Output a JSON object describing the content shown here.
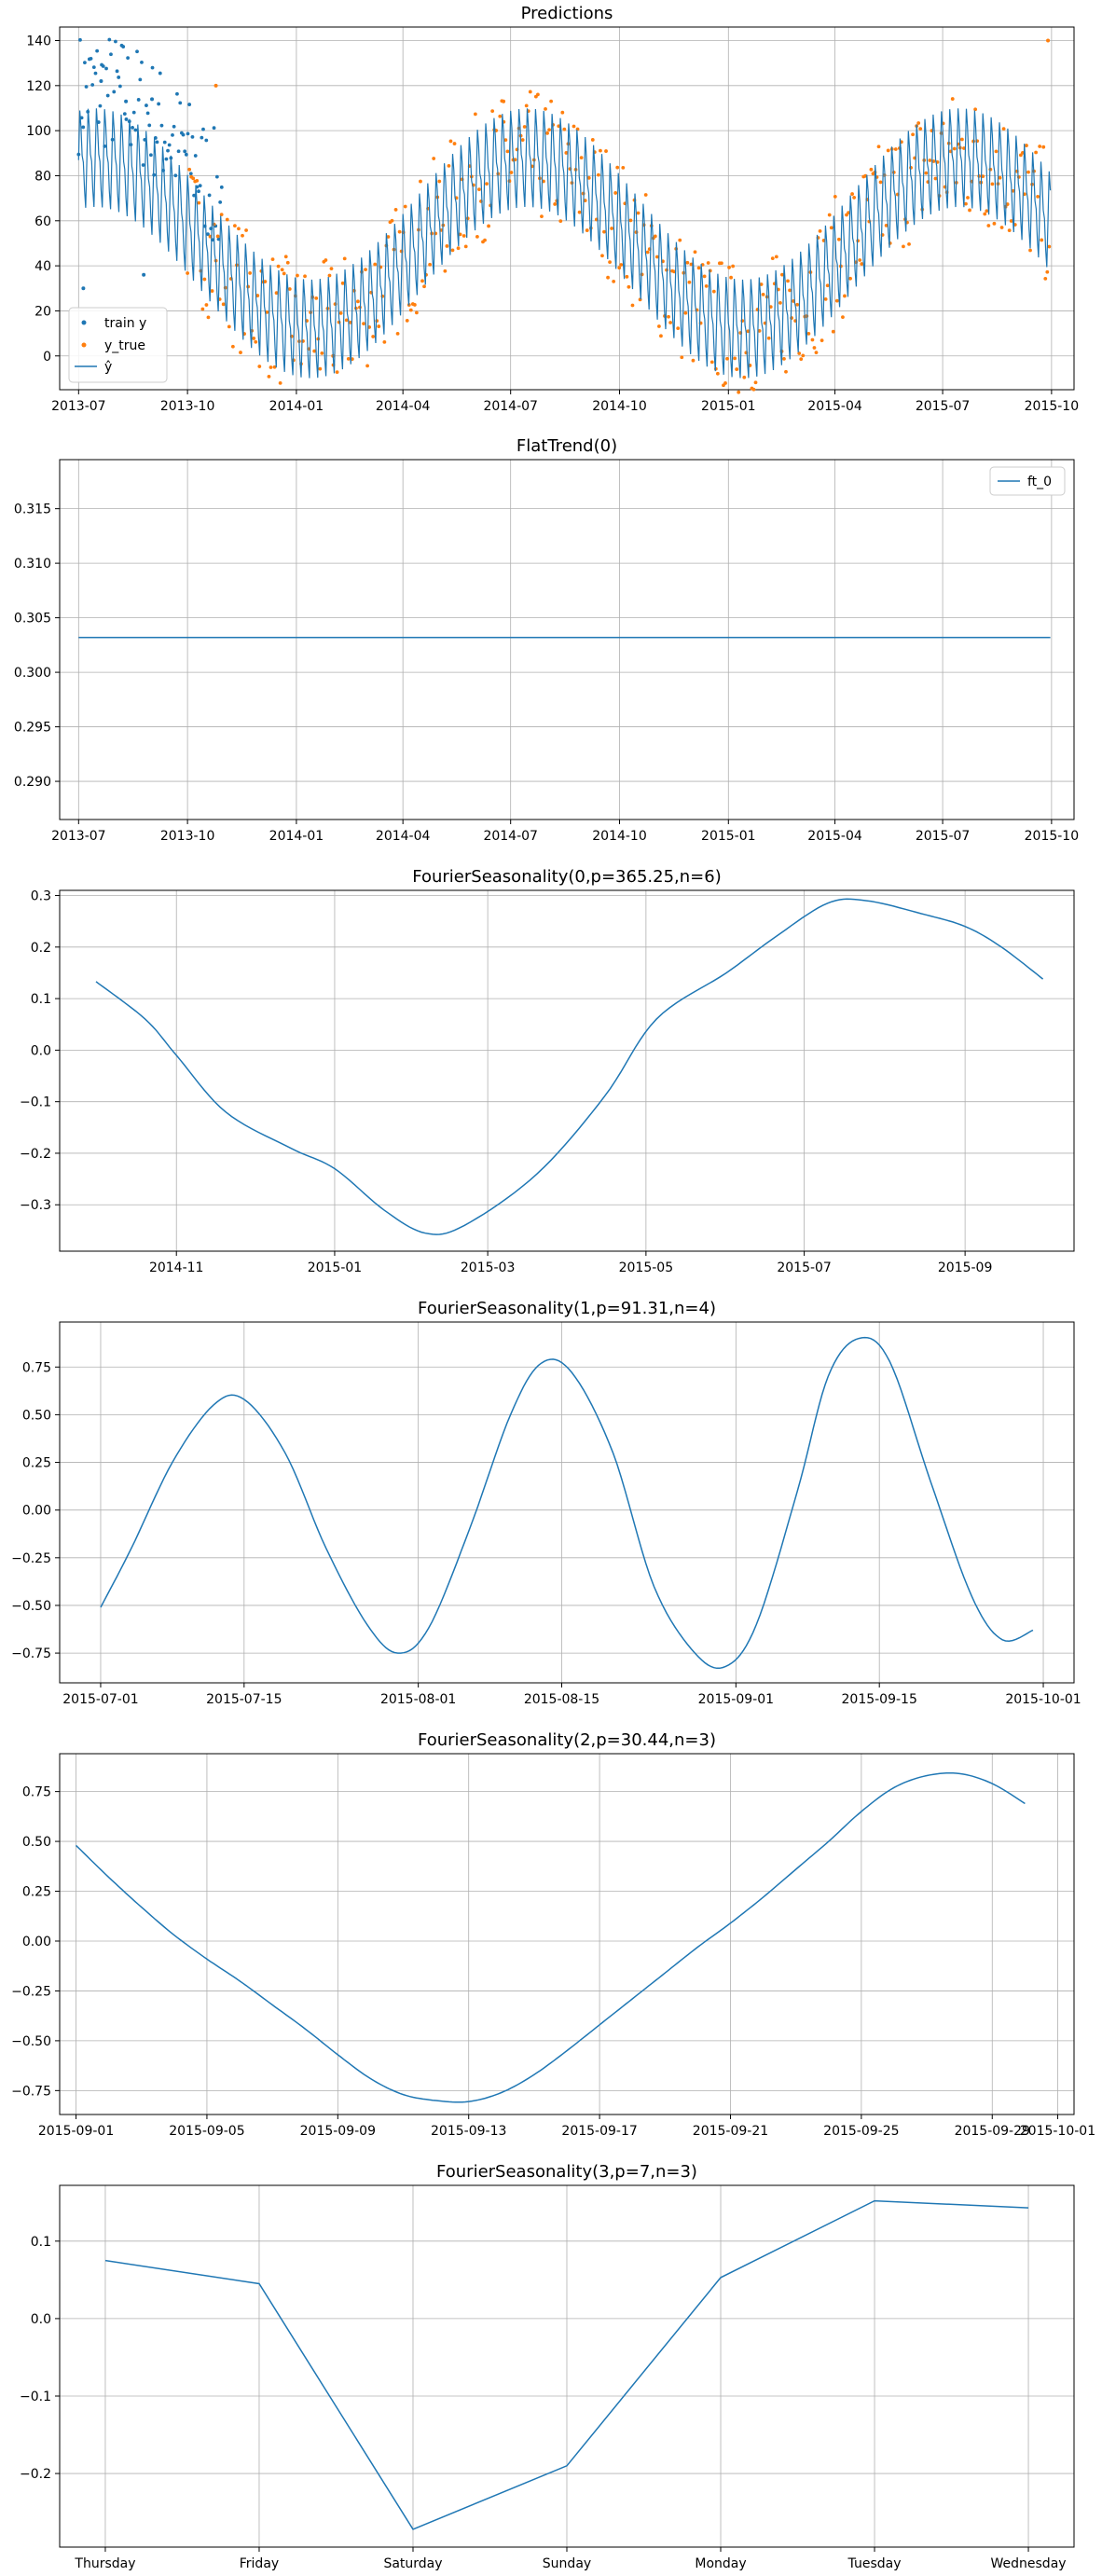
{
  "colors": {
    "train": "#1f77b4",
    "true": "#ff7f0e",
    "pred": "#1f77b4",
    "grid": "#b0b0b0"
  },
  "chart_data": [
    {
      "type": "scatter+line",
      "title": "Predictions",
      "xlabel": "",
      "ylabel": "",
      "x_ticks": [
        "2013-07",
        "2013-10",
        "2014-01",
        "2014-04",
        "2014-07",
        "2014-10",
        "2015-01",
        "2015-04",
        "2015-07",
        "2015-10"
      ],
      "y_ticks": [
        "0",
        "20",
        "40",
        "60",
        "80",
        "100",
        "120",
        "140"
      ],
      "xlim": [
        "2013-06-15",
        "2015-10-20"
      ],
      "ylim": [
        -15,
        146
      ],
      "grid": true,
      "legend": {
        "placement": "lower-left",
        "entries": [
          "train y",
          "y_true",
          "ŷ"
        ]
      },
      "series": [
        {
          "name": "train y",
          "kind": "scatter",
          "x_range": [
            "2013-07-01",
            "2013-10-31"
          ],
          "approx_level": "60–120",
          "note_points": [
            {
              "x": "2013-07-20",
              "y": 122
            },
            {
              "x": "2013-08-10",
              "y": 113
            },
            {
              "x": "2013-09-01",
              "y": 114
            },
            {
              "x": "2013-08-25",
              "y": 36
            },
            {
              "x": "2013-07-05",
              "y": 30
            }
          ]
        },
        {
          "name": "y_true",
          "kind": "scatter",
          "x_range": [
            "2013-10-01",
            "2015-09-30"
          ],
          "note_points": [
            {
              "x": "2013-10-25",
              "y": 120
            },
            {
              "x": "2014-06-25",
              "y": 113
            },
            {
              "x": "2015-09-28",
              "y": 140
            },
            {
              "x": "2014-02-01",
              "y": 0
            },
            {
              "x": "2015-02-15",
              "y": 2
            }
          ]
        },
        {
          "name": "ŷ",
          "kind": "line",
          "x_range": [
            "2013-07-01",
            "2015-09-30"
          ],
          "description": "annual seasonal curve with weekly oscillation"
        }
      ]
    },
    {
      "type": "line",
      "title": "FlatTrend(0)",
      "x_ticks": [
        "2013-07",
        "2013-10",
        "2014-01",
        "2014-04",
        "2014-07",
        "2014-10",
        "2015-01",
        "2015-04",
        "2015-07",
        "2015-10"
      ],
      "y_ticks": [
        "0.290",
        "0.295",
        "0.300",
        "0.305",
        "0.310",
        "0.315"
      ],
      "xlim": [
        "2013-06-15",
        "2015-10-20"
      ],
      "ylim": [
        0.2865,
        0.3195
      ],
      "grid": true,
      "legend": {
        "placement": "top-right",
        "entries": [
          "ft_0"
        ]
      },
      "series": [
        {
          "name": "ft_0",
          "x": [
            "2013-07-01",
            "2015-09-30"
          ],
          "values": [
            0.3032,
            0.3032
          ]
        }
      ]
    },
    {
      "type": "line",
      "title": "FourierSeasonality(0,p=365.25,n=6)",
      "x_ticks": [
        "2014-11",
        "2015-01",
        "2015-03",
        "2015-05",
        "2015-07",
        "2015-09"
      ],
      "y_ticks": [
        "−0.3",
        "−0.2",
        "−0.1",
        "0.0",
        "0.1",
        "0.2",
        "0.3"
      ],
      "xlim": [
        "2014-09-17",
        "2015-10-13"
      ],
      "ylim": [
        -0.39,
        0.31
      ],
      "grid": true,
      "x": [
        "2014-10-01",
        "2014-10-20",
        "2014-11-01",
        "2014-11-20",
        "2014-12-15",
        "2015-01-01",
        "2015-01-20",
        "2015-02-05",
        "2015-02-20",
        "2015-03-20",
        "2015-04-15",
        "2015-05-05",
        "2015-06-01",
        "2015-06-20",
        "2015-07-10",
        "2015-07-25",
        "2015-08-15",
        "2015-09-01",
        "2015-09-15",
        "2015-10-01"
      ],
      "values": [
        0.133,
        0.06,
        -0.01,
        -0.12,
        -0.19,
        -0.23,
        -0.31,
        -0.355,
        -0.34,
        -0.24,
        -0.09,
        0.06,
        0.15,
        0.22,
        0.285,
        0.29,
        0.265,
        0.24,
        0.2,
        0.138
      ]
    },
    {
      "type": "line",
      "title": "FourierSeasonality(1,p=91.31,n=4)",
      "x_ticks": [
        "2015-07-01",
        "2015-07-15",
        "2015-08-01",
        "2015-08-15",
        "2015-09-01",
        "2015-09-15",
        "2015-10-01"
      ],
      "y_ticks": [
        "−0.75",
        "−0.50",
        "−0.25",
        "0.00",
        "0.25",
        "0.50",
        "0.75"
      ],
      "xlim": [
        "2015-06-27",
        "2015-10-04"
      ],
      "ylim": [
        -0.906,
        0.986
      ],
      "grid": true,
      "x": [
        "2015-07-01",
        "2015-07-04",
        "2015-07-08",
        "2015-07-12",
        "2015-07-15",
        "2015-07-19",
        "2015-07-23",
        "2015-07-27",
        "2015-07-30",
        "2015-08-02",
        "2015-08-06",
        "2015-08-10",
        "2015-08-13",
        "2015-08-16",
        "2015-08-20",
        "2015-08-24",
        "2015-08-28",
        "2015-08-31",
        "2015-09-03",
        "2015-09-07",
        "2015-09-10",
        "2015-09-13",
        "2015-09-16",
        "2015-09-20",
        "2015-09-24",
        "2015-09-27",
        "2015-09-30"
      ],
      "values": [
        -0.51,
        -0.2,
        0.25,
        0.55,
        0.58,
        0.3,
        -0.2,
        -0.6,
        -0.75,
        -0.62,
        -0.1,
        0.5,
        0.77,
        0.72,
        0.3,
        -0.4,
        -0.75,
        -0.82,
        -0.6,
        0.1,
        0.7,
        0.9,
        0.78,
        0.15,
        -0.45,
        -0.68,
        -0.63
      ]
    },
    {
      "type": "line",
      "title": "FourierSeasonality(2,p=30.44,n=3)",
      "x_ticks": [
        "2015-09-01",
        "2015-09-05",
        "2015-09-09",
        "2015-09-13",
        "2015-09-17",
        "2015-09-21",
        "2015-09-25",
        "2015-09-29",
        "2015-10-01"
      ],
      "y_ticks": [
        "−0.75",
        "−0.50",
        "−0.25",
        "0.00",
        "0.25",
        "0.50",
        "0.75"
      ],
      "xlim": [
        "2015-08-31T12:00",
        "2015-10-01T12:00"
      ],
      "ylim": [
        -0.87,
        0.94
      ],
      "grid": true,
      "x": [
        "2015-09-01",
        "2015-09-02",
        "2015-09-03",
        "2015-09-04",
        "2015-09-05",
        "2015-09-06",
        "2015-09-07",
        "2015-09-08",
        "2015-09-09",
        "2015-09-10",
        "2015-09-11",
        "2015-09-12",
        "2015-09-13",
        "2015-09-14",
        "2015-09-15",
        "2015-09-16",
        "2015-09-17",
        "2015-09-18",
        "2015-09-19",
        "2015-09-20",
        "2015-09-21",
        "2015-09-22",
        "2015-09-23",
        "2015-09-24",
        "2015-09-25",
        "2015-09-26",
        "2015-09-27",
        "2015-09-28",
        "2015-09-29",
        "2015-09-30"
      ],
      "values": [
        0.48,
        0.32,
        0.17,
        0.03,
        -0.09,
        -0.2,
        -0.32,
        -0.44,
        -0.57,
        -0.69,
        -0.77,
        -0.8,
        -0.805,
        -0.76,
        -0.67,
        -0.55,
        -0.42,
        -0.29,
        -0.16,
        -0.03,
        0.09,
        0.22,
        0.36,
        0.5,
        0.65,
        0.77,
        0.83,
        0.84,
        0.79,
        0.69
      ]
    },
    {
      "type": "line",
      "title": "FourierSeasonality(3,p=7,n=3)",
      "categories": [
        "Thursday",
        "Friday",
        "Saturday",
        "Sunday",
        "Monday",
        "Tuesday",
        "Wednesday"
      ],
      "y_ticks": [
        "−0.2",
        "−0.1",
        "0.0",
        "0.1"
      ],
      "ylim": [
        -0.295,
        0.172
      ],
      "grid": true,
      "values": [
        0.075,
        0.045,
        -0.272,
        -0.19,
        0.053,
        0.152,
        0.143
      ]
    }
  ]
}
